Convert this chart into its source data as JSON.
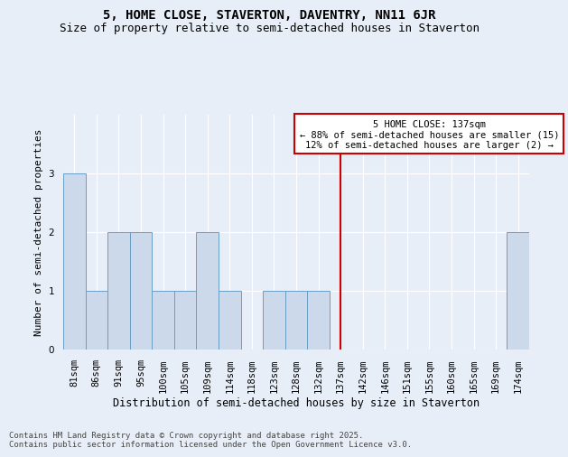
{
  "title": "5, HOME CLOSE, STAVERTON, DAVENTRY, NN11 6JR",
  "subtitle": "Size of property relative to semi-detached houses in Staverton",
  "xlabel": "Distribution of semi-detached houses by size in Staverton",
  "ylabel": "Number of semi-detached properties",
  "categories": [
    "81sqm",
    "86sqm",
    "91sqm",
    "95sqm",
    "100sqm",
    "105sqm",
    "109sqm",
    "114sqm",
    "118sqm",
    "123sqm",
    "128sqm",
    "132sqm",
    "137sqm",
    "142sqm",
    "146sqm",
    "151sqm",
    "155sqm",
    "160sqm",
    "165sqm",
    "169sqm",
    "174sqm"
  ],
  "values": [
    3,
    1,
    2,
    2,
    1,
    1,
    2,
    1,
    0,
    1,
    1,
    1,
    0,
    0,
    0,
    0,
    0,
    0,
    0,
    0,
    2
  ],
  "bar_color": "#ccd9ea",
  "bar_edge_color": "#6a9ec5",
  "highlight_index": 12,
  "highlight_line_color": "#cc0000",
  "highlight_label": "5 HOME CLOSE: 137sqm",
  "annotation_line1": "← 88% of semi-detached houses are smaller (15)",
  "annotation_line2": "12% of semi-detached houses are larger (2) →",
  "annotation_box_color": "#ffffff",
  "annotation_border_color": "#cc0000",
  "footer_line1": "Contains HM Land Registry data © Crown copyright and database right 2025.",
  "footer_line2": "Contains public sector information licensed under the Open Government Licence v3.0.",
  "ylim": [
    0,
    4
  ],
  "yticks": [
    0,
    1,
    2,
    3
  ],
  "title_fontsize": 10,
  "subtitle_fontsize": 9,
  "xlabel_fontsize": 8.5,
  "ylabel_fontsize": 8,
  "tick_fontsize": 7.5,
  "footer_fontsize": 6.5,
  "annotation_fontsize": 7.5,
  "background_color": "#e8eef8"
}
